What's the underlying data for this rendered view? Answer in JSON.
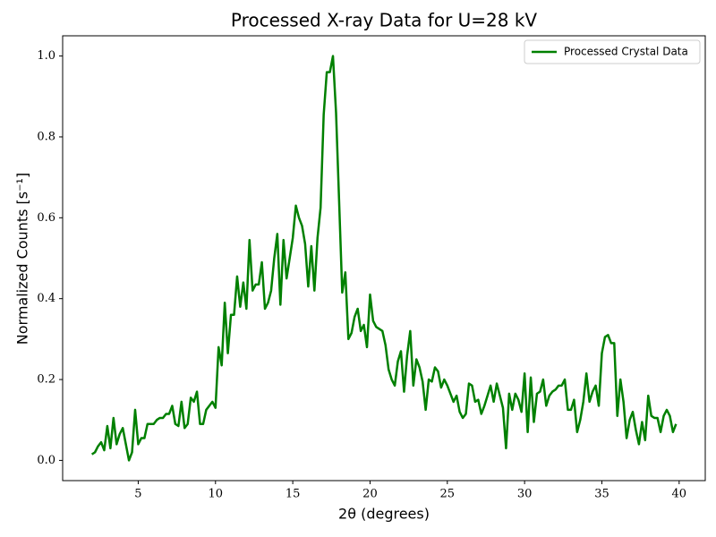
{
  "chart_data": {
    "type": "line",
    "title": "Processed X-ray Data for U=28 kV",
    "xlabel": "2θ (degrees)",
    "ylabel": "Normalized Counts [s⁻¹]",
    "legend": "upper right",
    "x": [
      2,
      2.2,
      2.4,
      2.6,
      2.8,
      3,
      3.2,
      3.4,
      3.6,
      3.8,
      4,
      4.2,
      4.4,
      4.6,
      4.8,
      5,
      5.2,
      5.4,
      5.6,
      5.8,
      6,
      6.2,
      6.4,
      6.6,
      6.8,
      7,
      7.2,
      7.4,
      7.6,
      7.8,
      8,
      8.2,
      8.4,
      8.6,
      8.8,
      9,
      9.2,
      9.4,
      9.6,
      9.8,
      10,
      10.2,
      10.4,
      10.6,
      10.8,
      11,
      11.2,
      11.4,
      11.6,
      11.8,
      12,
      12.2,
      12.4,
      12.6,
      12.8,
      13,
      13.2,
      13.4,
      13.6,
      13.8,
      14,
      14.2,
      14.4,
      14.6,
      14.8,
      15,
      15.2,
      15.4,
      15.6,
      15.8,
      16,
      16.2,
      16.4,
      16.6,
      16.8,
      17,
      17.2,
      17.4,
      17.6,
      17.8,
      18,
      18.2,
      18.4,
      18.6,
      18.8,
      19,
      19.2,
      19.4,
      19.6,
      19.8,
      20,
      20.2,
      20.4,
      20.6,
      20.8,
      21,
      21.2,
      21.4,
      21.6,
      21.8,
      22,
      22.2,
      22.4,
      22.6,
      22.8,
      23,
      23.2,
      23.4,
      23.6,
      23.8,
      24,
      24.2,
      24.4,
      24.6,
      24.8,
      25,
      25.2,
      25.4,
      25.6,
      25.8,
      26,
      26.2,
      26.4,
      26.6,
      26.8,
      27,
      27.2,
      27.4,
      27.6,
      27.8,
      28,
      28.2,
      28.4,
      28.6,
      28.8,
      29,
      29.2,
      29.4,
      29.6,
      29.8,
      30,
      30.2,
      30.4,
      30.6,
      30.8,
      31,
      31.2,
      31.4,
      31.6,
      31.8,
      32,
      32.2,
      32.4,
      32.6,
      32.8,
      33,
      33.2,
      33.4,
      33.6,
      33.8,
      34,
      34.2,
      34.4,
      34.6,
      34.8,
      35,
      35.2,
      35.4,
      35.6,
      35.8,
      36,
      36.2,
      36.4,
      36.6,
      36.8,
      37,
      37.2,
      37.4,
      37.6,
      37.8,
      38,
      38.2,
      38.4,
      38.6,
      38.8,
      39,
      39.2,
      39.4,
      39.6,
      39.8
    ],
    "series": [
      {
        "name": "Processed Crystal Data",
        "color": "#008000",
        "values": [
          0.015,
          0.02,
          0.035,
          0.045,
          0.025,
          0.085,
          0.03,
          0.105,
          0.04,
          0.065,
          0.08,
          0.04,
          0.0,
          0.02,
          0.125,
          0.04,
          0.055,
          0.055,
          0.09,
          0.09,
          0.09,
          0.1,
          0.105,
          0.105,
          0.115,
          0.115,
          0.135,
          0.09,
          0.085,
          0.145,
          0.08,
          0.09,
          0.155,
          0.145,
          0.17,
          0.09,
          0.09,
          0.125,
          0.135,
          0.145,
          0.13,
          0.28,
          0.235,
          0.39,
          0.265,
          0.36,
          0.36,
          0.455,
          0.38,
          0.44,
          0.375,
          0.545,
          0.42,
          0.435,
          0.435,
          0.49,
          0.375,
          0.39,
          0.42,
          0.5,
          0.56,
          0.385,
          0.545,
          0.45,
          0.5,
          0.55,
          0.63,
          0.6,
          0.58,
          0.535,
          0.43,
          0.53,
          0.42,
          0.55,
          0.625,
          0.855,
          0.96,
          0.96,
          1.0,
          0.86,
          0.64,
          0.415,
          0.465,
          0.3,
          0.315,
          0.355,
          0.375,
          0.32,
          0.335,
          0.28,
          0.41,
          0.345,
          0.33,
          0.325,
          0.32,
          0.285,
          0.225,
          0.2,
          0.185,
          0.245,
          0.27,
          0.17,
          0.26,
          0.32,
          0.185,
          0.25,
          0.23,
          0.195,
          0.125,
          0.2,
          0.195,
          0.23,
          0.22,
          0.18,
          0.2,
          0.185,
          0.165,
          0.145,
          0.16,
          0.12,
          0.105,
          0.115,
          0.19,
          0.185,
          0.145,
          0.15,
          0.115,
          0.135,
          0.16,
          0.185,
          0.145,
          0.19,
          0.16,
          0.13,
          0.03,
          0.165,
          0.125,
          0.165,
          0.15,
          0.12,
          0.215,
          0.07,
          0.205,
          0.095,
          0.165,
          0.17,
          0.2,
          0.135,
          0.16,
          0.17,
          0.175,
          0.185,
          0.185,
          0.2,
          0.125,
          0.125,
          0.15,
          0.07,
          0.1,
          0.145,
          0.215,
          0.145,
          0.17,
          0.185,
          0.135,
          0.265,
          0.305,
          0.31,
          0.29,
          0.29,
          0.11,
          0.2,
          0.145,
          0.055,
          0.1,
          0.12,
          0.075,
          0.04,
          0.095,
          0.05,
          0.16,
          0.11,
          0.105,
          0.105,
          0.07,
          0.11,
          0.125,
          0.11,
          0.07,
          0.09
        ]
      }
    ],
    "xlim": [
      0.11,
      41.69
    ],
    "ylim": [
      -0.05,
      1.05
    ],
    "xticks": [
      5,
      10,
      15,
      20,
      25,
      30,
      35,
      40
    ],
    "yticks": [
      {
        "value": 0,
        "label": "0.0"
      },
      0.2,
      0.4,
      0.6,
      0.8,
      {
        "value": 1,
        "label": "1.0"
      }
    ],
    "grid": false
  }
}
